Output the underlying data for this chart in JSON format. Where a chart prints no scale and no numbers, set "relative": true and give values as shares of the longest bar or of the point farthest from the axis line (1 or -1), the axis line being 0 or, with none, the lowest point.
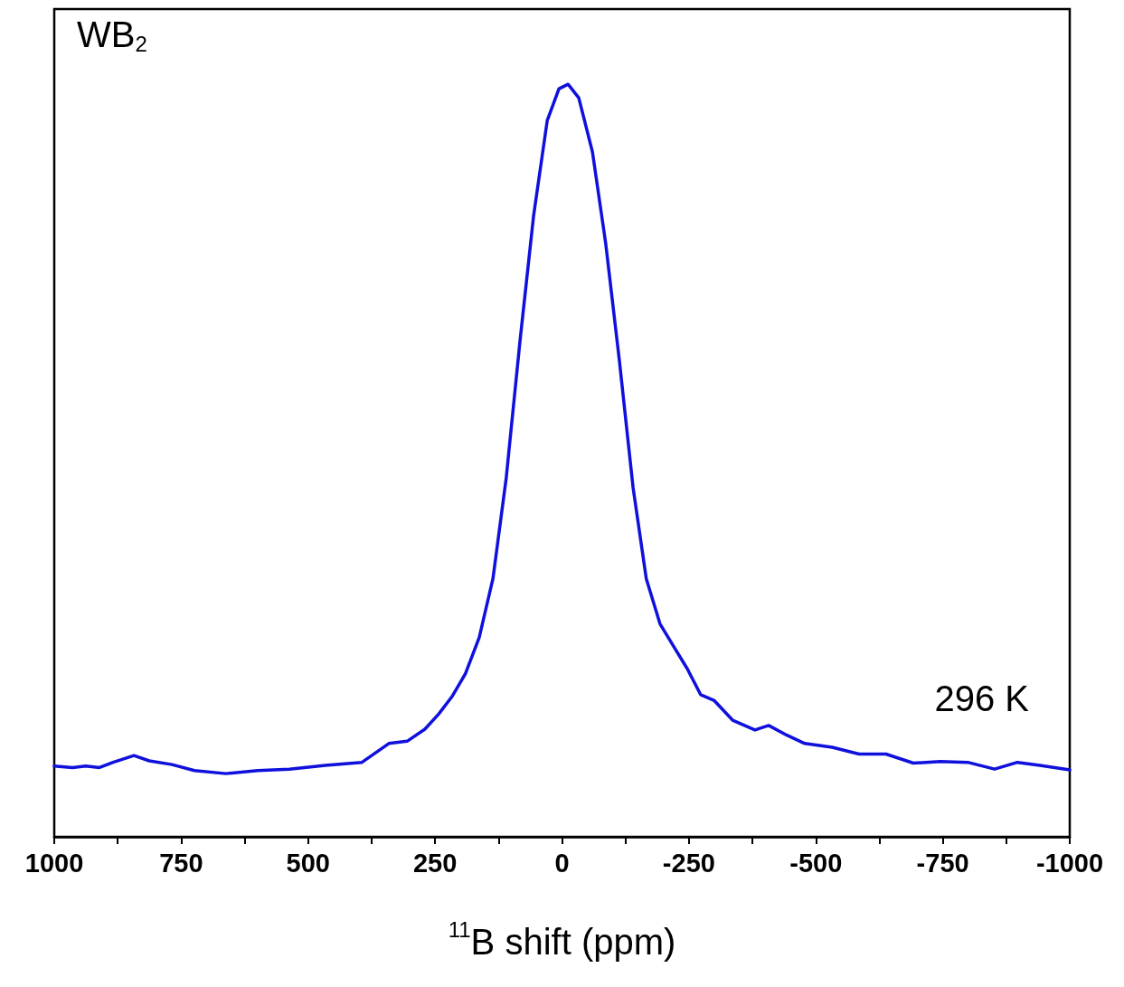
{
  "chart_data": {
    "type": "line",
    "relative": true,
    "xlabel": "$^{11}$B shift (ppm)",
    "annotations": [
      "WB$_{2}$",
      "296 K"
    ],
    "xlim": [
      1000,
      -1000
    ],
    "xticks": [
      1000,
      {
        "value": 875,
        "label": null
      },
      750,
      {
        "value": 625,
        "label": null
      },
      500,
      {
        "value": 375,
        "label": null
      },
      250,
      {
        "value": 125,
        "label": null
      },
      0,
      {
        "value": -125,
        "label": null
      },
      -250,
      {
        "value": -375,
        "label": null
      },
      -500,
      {
        "value": -625,
        "label": null
      },
      -750,
      {
        "value": -875,
        "label": null
      },
      -1000
    ],
    "grid": false,
    "marker": "none",
    "line_style": "solid",
    "series": [
      {
        "color": "#1010dd",
        "x": [
          1000,
          964,
          938,
          911,
          884,
          843,
          813,
          768,
          724,
          662,
          599,
          537,
          466,
          394,
          341,
          305,
          270,
          243,
          216,
          190,
          163,
          136,
          110,
          83,
          56,
          29,
          6,
          -12,
          -33,
          -60,
          -86,
          -113,
          -140,
          -166,
          -193,
          -220,
          -247,
          -273,
          -300,
          -336,
          -380,
          -407,
          -443,
          -478,
          -532,
          -585,
          -638,
          -692,
          -745,
          -799,
          -852,
          -897,
          -941,
          -1000
        ],
        "values": [
          0.094,
          0.092,
          0.094,
          0.092,
          0.099,
          0.108,
          0.101,
          0.096,
          0.088,
          0.084,
          0.088,
          0.09,
          0.095,
          0.099,
          0.124,
          0.127,
          0.143,
          0.163,
          0.187,
          0.217,
          0.265,
          0.343,
          0.476,
          0.657,
          0.825,
          0.952,
          0.994,
          1.0,
          0.982,
          0.91,
          0.789,
          0.633,
          0.464,
          0.343,
          0.283,
          0.253,
          0.223,
          0.189,
          0.181,
          0.155,
          0.142,
          0.148,
          0.135,
          0.124,
          0.119,
          0.11,
          0.11,
          0.098,
          0.1,
          0.099,
          0.09,
          0.099,
          0.095,
          0.089
        ]
      }
    ]
  }
}
